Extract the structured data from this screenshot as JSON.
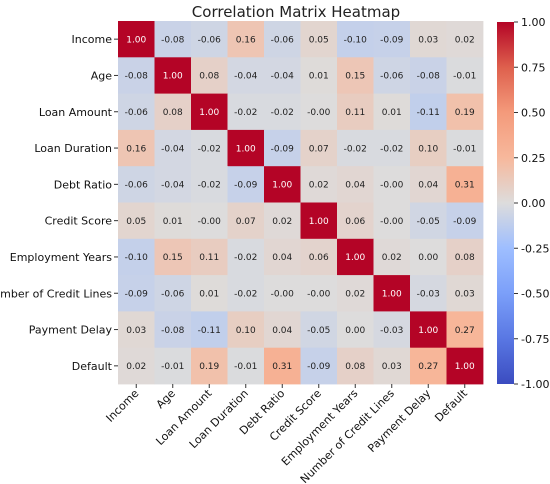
{
  "chart_data": {
    "type": "heatmap",
    "title": "Correlation Matrix Heatmap",
    "labels": [
      "Income",
      "Age",
      "Loan Amount",
      "Loan Duration",
      "Debt Ratio",
      "Credit Score",
      "Employment Years",
      "Number of Credit Lines",
      "Payment Delay",
      "Default"
    ],
    "matrix": [
      [
        "1.00",
        "-0.08",
        "-0.06",
        "0.16",
        "-0.06",
        "0.05",
        "-0.10",
        "-0.09",
        "0.03",
        "0.02"
      ],
      [
        "-0.08",
        "1.00",
        "0.08",
        "-0.04",
        "-0.04",
        "0.01",
        "0.15",
        "-0.06",
        "-0.08",
        "-0.01"
      ],
      [
        "-0.06",
        "0.08",
        "1.00",
        "-0.02",
        "-0.02",
        "-0.00",
        "0.11",
        "0.01",
        "-0.11",
        "0.19"
      ],
      [
        "0.16",
        "-0.04",
        "-0.02",
        "1.00",
        "-0.09",
        "0.07",
        "-0.02",
        "-0.02",
        "0.10",
        "-0.01"
      ],
      [
        "-0.06",
        "-0.04",
        "-0.02",
        "-0.09",
        "1.00",
        "0.02",
        "0.04",
        "-0.00",
        "0.04",
        "0.31"
      ],
      [
        "0.05",
        "0.01",
        "-0.00",
        "0.07",
        "0.02",
        "1.00",
        "0.06",
        "-0.00",
        "-0.05",
        "-0.09"
      ],
      [
        "-0.10",
        "0.15",
        "0.11",
        "-0.02",
        "0.04",
        "0.06",
        "1.00",
        "0.02",
        "0.00",
        "0.08"
      ],
      [
        "-0.09",
        "-0.06",
        "0.01",
        "-0.02",
        "-0.00",
        "-0.00",
        "0.02",
        "1.00",
        "-0.03",
        "0.03"
      ],
      [
        "0.03",
        "-0.08",
        "-0.11",
        "0.10",
        "0.04",
        "-0.05",
        "0.00",
        "-0.03",
        "1.00",
        "0.27"
      ],
      [
        "0.02",
        "-0.01",
        "0.19",
        "-0.01",
        "0.31",
        "-0.09",
        "0.08",
        "0.03",
        "0.27",
        "1.00"
      ]
    ],
    "colorscale": "coolwarm",
    "vmin": -1.0,
    "vmax": 1.0,
    "colorbar_ticks": [
      "1.00",
      "0.75",
      "0.50",
      "0.25",
      "0.00",
      "-0.25",
      "-0.50",
      "-0.75",
      "-1.00"
    ],
    "colors": {
      "low": "#3b4cc0",
      "mid": "#dddddd",
      "high": "#b40426"
    }
  }
}
